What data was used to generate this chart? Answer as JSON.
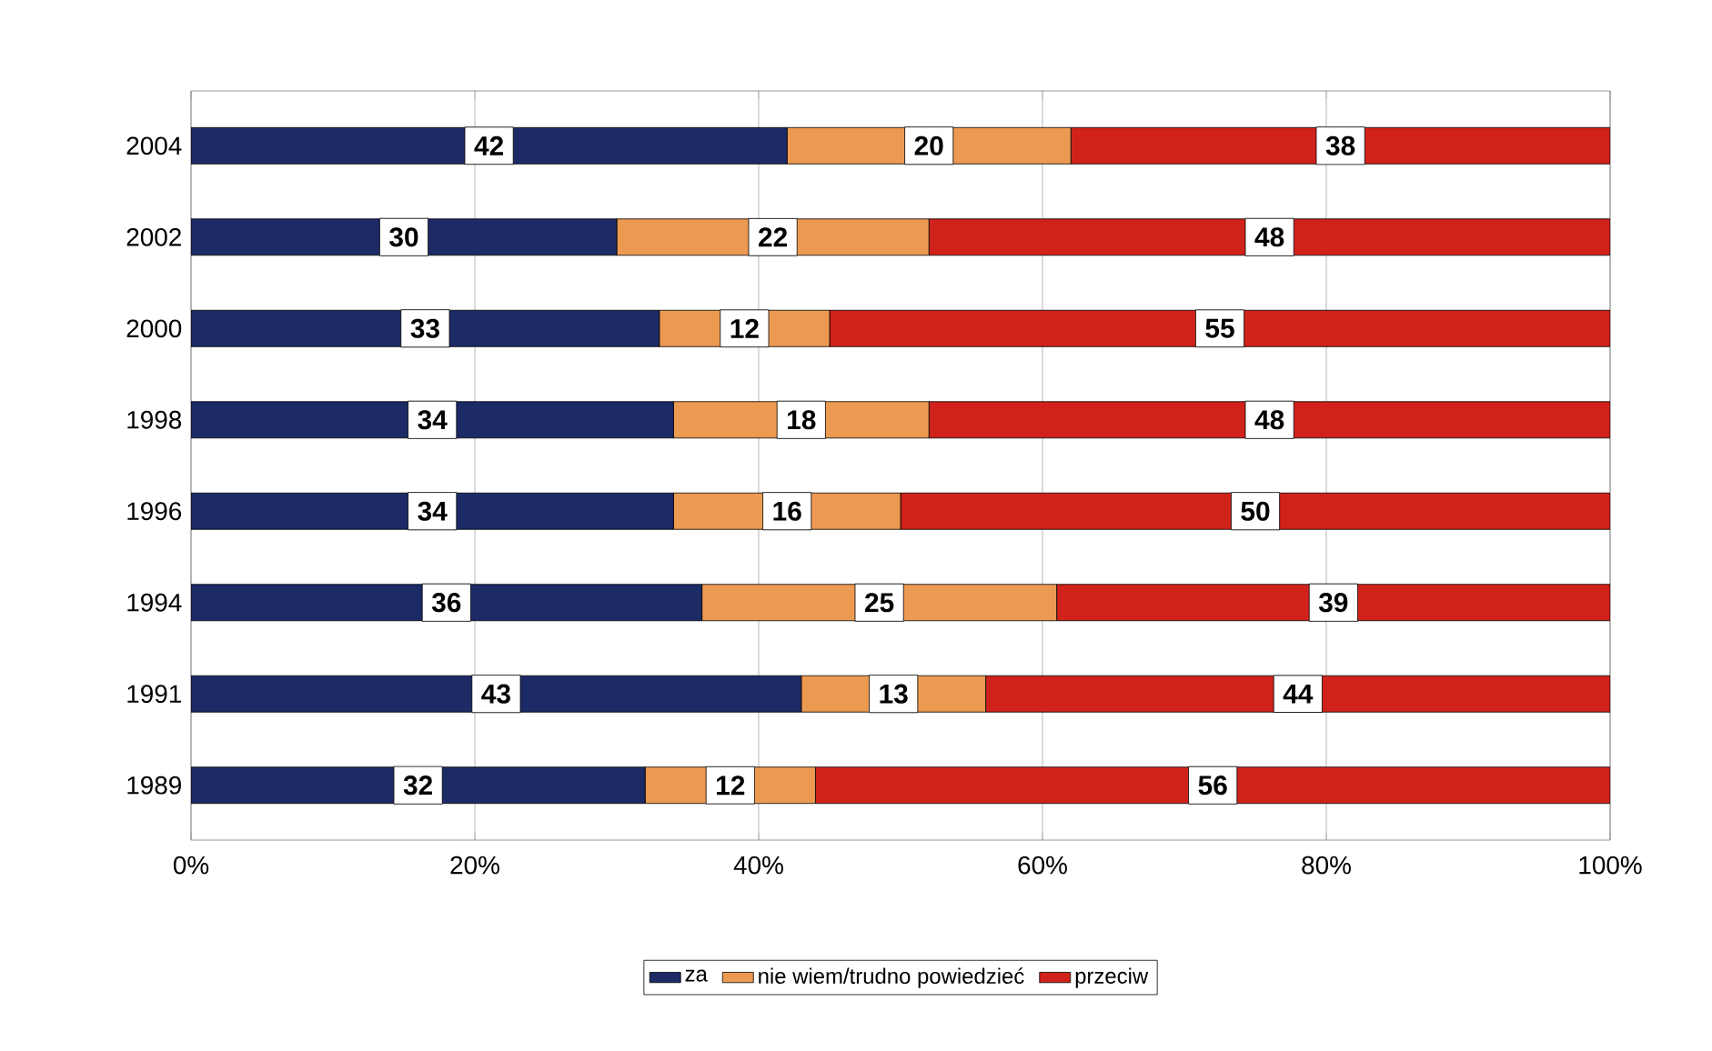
{
  "chart_data": {
    "type": "bar",
    "orientation": "horizontal",
    "stacked": true,
    "data_labels": true,
    "grid": "x",
    "legend": "bottom",
    "categories": [
      "2004",
      "2002",
      "2000",
      "1998",
      "1996",
      "1994",
      "1991",
      "1989"
    ],
    "series": [
      {
        "name": "za",
        "color": "#1c2a66",
        "values": [
          42,
          30,
          33,
          34,
          34,
          36,
          43,
          32
        ]
      },
      {
        "name": "nie wiem/trudno powiedzieć",
        "color": "#ec9a52",
        "values": [
          20,
          22,
          12,
          18,
          16,
          25,
          13,
          12
        ]
      },
      {
        "name": "przeciw",
        "color": "#d0221a",
        "values": [
          38,
          48,
          55,
          48,
          50,
          39,
          44,
          56
        ]
      }
    ],
    "xlim": [
      0,
      100
    ],
    "xticks": [
      {
        "value": 0,
        "label": "0%"
      },
      {
        "value": 20,
        "label": "20%"
      },
      {
        "value": 40,
        "label": "40%"
      },
      {
        "value": 60,
        "label": "60%"
      },
      {
        "value": 80,
        "label": "80%"
      },
      {
        "value": 100,
        "label": "100%"
      }
    ]
  }
}
